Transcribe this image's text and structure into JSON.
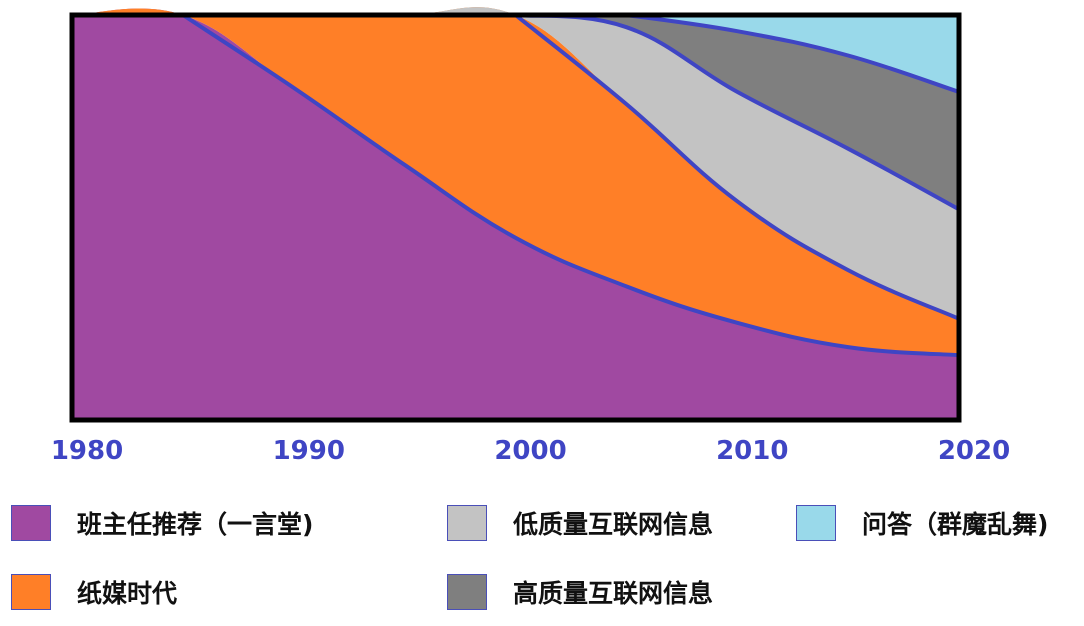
{
  "chart_data": {
    "type": "area",
    "x": [
      1980,
      1985,
      1990,
      1995,
      2000,
      2005,
      2010,
      2015,
      2020
    ],
    "xlim": [
      1980,
      2020
    ],
    "ylim": [
      0,
      1
    ],
    "x_ticks": [
      "1980",
      "1990",
      "2000",
      "2010",
      "2020"
    ],
    "legend_position": "bottom",
    "series": [
      {
        "name": "班主任推荐（一言堂)",
        "color": "#a049a1",
        "values": [
          1.0,
          1.0,
          0.82,
          0.63,
          0.45,
          0.33,
          0.24,
          0.18,
          0.16
        ]
      },
      {
        "name": "纸媒时代",
        "color": "#ff7f27",
        "values": [
          0.0,
          0.0,
          0.18,
          0.37,
          0.55,
          0.45,
          0.3,
          0.19,
          0.09
        ]
      },
      {
        "name": "低质量互联网信息",
        "color": "#c3c3c3",
        "values": [
          0.0,
          0.0,
          0.0,
          0.0,
          0.0,
          0.19,
          0.27,
          0.3,
          0.27
        ]
      },
      {
        "name": "高质量互联网信息",
        "color": "#7f7f7f",
        "values": [
          0.0,
          0.0,
          0.0,
          0.0,
          0.0,
          0.03,
          0.15,
          0.23,
          0.29
        ]
      },
      {
        "name": "问答（群魔乱舞)",
        "color": "#99d9ea",
        "values": [
          0.0,
          0.0,
          0.0,
          0.0,
          0.0,
          0.0,
          0.04,
          0.1,
          0.19
        ]
      }
    ],
    "boundary_color": "#3f45c4",
    "frame_color": "#000000"
  }
}
